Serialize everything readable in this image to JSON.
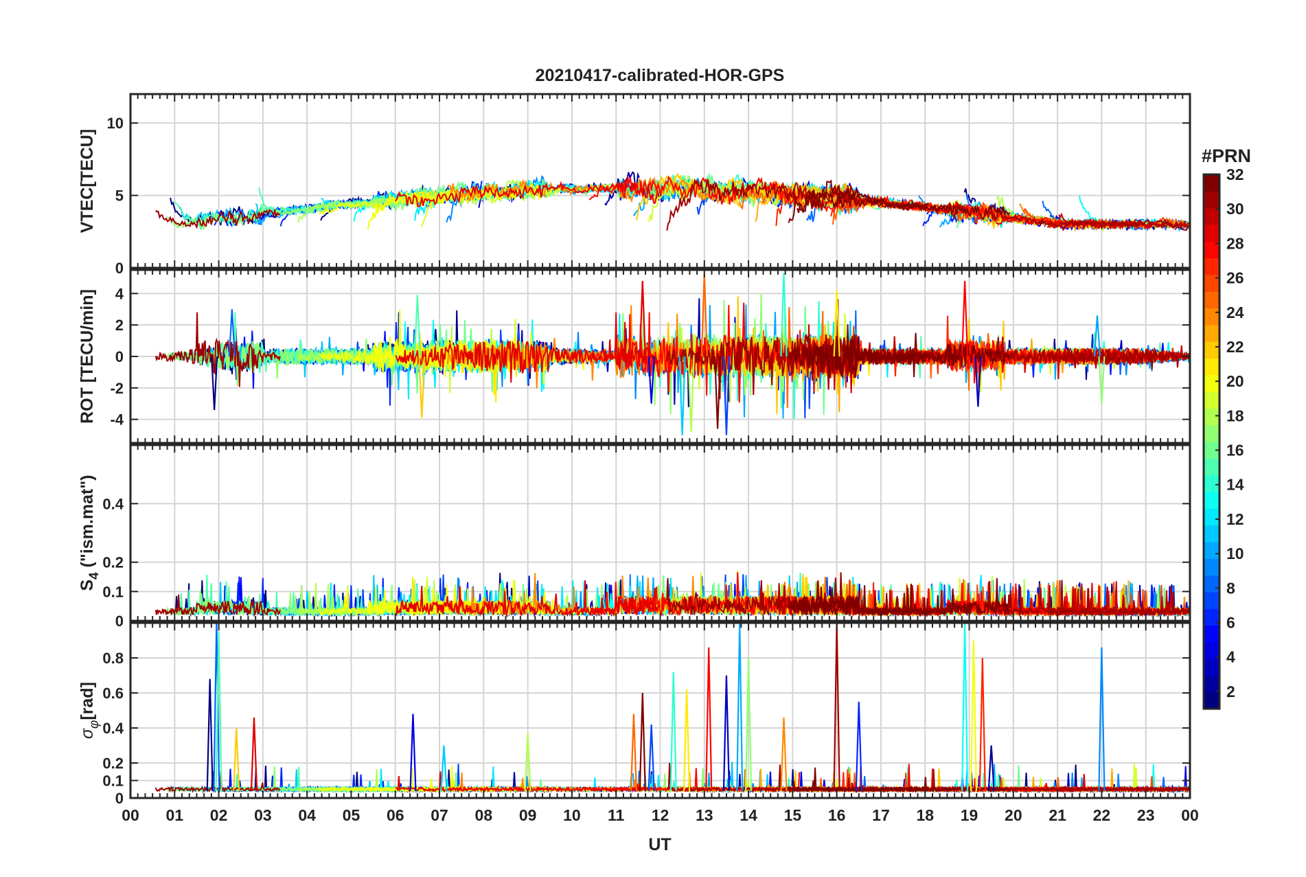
{
  "chart_data": {
    "type": "line",
    "title": "20210417-calibrated-HOR-GPS",
    "xlabel": "UT",
    "x_tick_labels": [
      "00",
      "01",
      "02",
      "03",
      "04",
      "05",
      "06",
      "07",
      "08",
      "09",
      "10",
      "11",
      "12",
      "13",
      "14",
      "15",
      "16",
      "17",
      "18",
      "19",
      "20",
      "21",
      "22",
      "23",
      "00"
    ],
    "xlim": [
      0,
      24
    ],
    "grid": true,
    "panels": [
      {
        "id": "vtec",
        "ylabel": "VTEC[TECU]",
        "ylim": [
          0,
          12
        ],
        "yticks": [
          0,
          5,
          10
        ],
        "ytick_labels": [
          "0",
          "5",
          "10"
        ],
        "kind": "vtec"
      },
      {
        "id": "rot",
        "ylabel": "ROT [TECU/min]",
        "ylim": [
          -5.5,
          5.5
        ],
        "yticks": [
          -4,
          -2,
          0,
          2,
          4
        ],
        "ytick_labels": [
          "-4",
          "-2",
          "0",
          "2",
          "4"
        ],
        "kind": "rot"
      },
      {
        "id": "s4",
        "ylabel_main": "S",
        "ylabel_sub": "4",
        "ylabel_rest": " (\"ism.mat\")",
        "ylim": [
          0,
          0.6
        ],
        "yticks": [
          0,
          0.1,
          0.2,
          0.4
        ],
        "ytick_labels": [
          "0",
          "0.1",
          "0.2",
          "0.4"
        ],
        "kind": "s4"
      },
      {
        "id": "sigma",
        "ylabel_main": "σ",
        "ylabel_sub": "φ",
        "ylabel_rest": "[rad]",
        "ylim": [
          0,
          1
        ],
        "yticks": [
          0,
          0.1,
          0.2,
          0.4,
          0.6,
          0.8
        ],
        "ytick_labels": [
          "0",
          "0.1",
          "0.2",
          "0.4",
          "0.6",
          "0.8"
        ],
        "kind": "sigma"
      }
    ],
    "colorbar": {
      "label": "#PRN",
      "range": [
        1,
        32
      ],
      "tick_labels": [
        "2",
        "4",
        "6",
        "8",
        "10",
        "12",
        "14",
        "16",
        "18",
        "20",
        "22",
        "24",
        "26",
        "28",
        "30",
        "32"
      ],
      "colormap": "jet"
    },
    "series_count": 32
  }
}
